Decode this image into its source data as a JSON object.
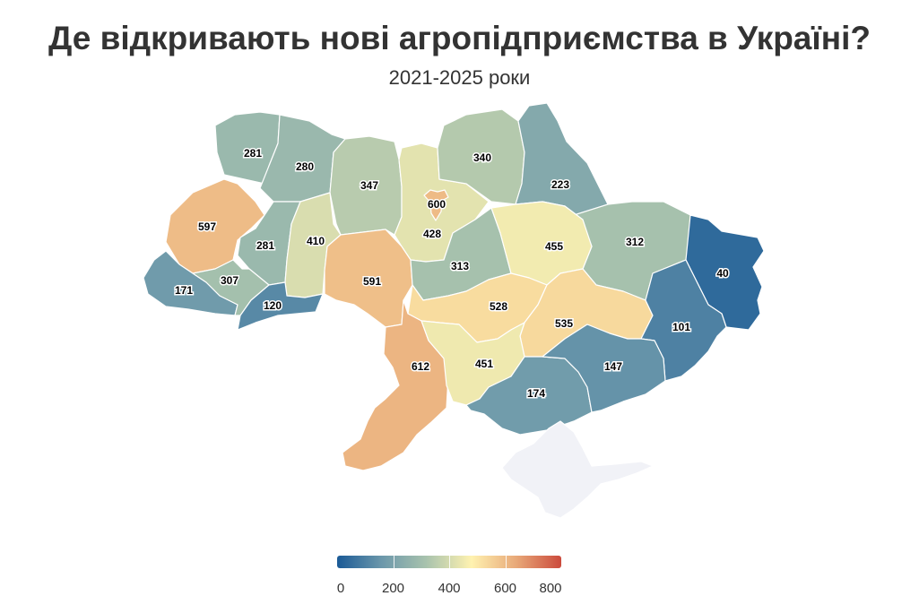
{
  "title": "Де відкривають нові агропідприємства в Україні?",
  "subtitle": "2021-2025 роки",
  "regions": [
    {
      "id": "volyn",
      "value": 281
    },
    {
      "id": "rivne",
      "value": 280
    },
    {
      "id": "zhytomyr",
      "value": 347
    },
    {
      "id": "kyiv-oblast",
      "value": 428
    },
    {
      "id": "kyiv-city",
      "value": 600
    },
    {
      "id": "chernihiv",
      "value": 340
    },
    {
      "id": "sumy",
      "value": 223
    },
    {
      "id": "kharkiv",
      "value": 312
    },
    {
      "id": "luhansk",
      "value": 40
    },
    {
      "id": "lviv",
      "value": 597
    },
    {
      "id": "ternopil",
      "value": 281
    },
    {
      "id": "khmelnytskyi",
      "value": 410
    },
    {
      "id": "vinnytsia",
      "value": 591
    },
    {
      "id": "cherkasy",
      "value": 313
    },
    {
      "id": "poltava",
      "value": 455
    },
    {
      "id": "zakarpattia",
      "value": 171
    },
    {
      "id": "ivano-frankivsk",
      "value": 307
    },
    {
      "id": "chernivtsi",
      "value": 120
    },
    {
      "id": "kirovohrad",
      "value": 528
    },
    {
      "id": "dnipropetrovsk",
      "value": 535
    },
    {
      "id": "donetsk",
      "value": 101
    },
    {
      "id": "odesa",
      "value": 612
    },
    {
      "id": "mykolaiv",
      "value": 451
    },
    {
      "id": "kherson",
      "value": 174
    },
    {
      "id": "zaporizhzhia",
      "value": 147
    },
    {
      "id": "crimea",
      "value": null
    }
  ],
  "legend": {
    "min": 0,
    "max": 800,
    "tick_labels": [
      "0",
      "200",
      "400",
      "600",
      "800"
    ],
    "colors": [
      "#1a5a96",
      "#6c98ab",
      "#a9c3ad",
      "#fff2b0",
      "#e8a878",
      "#cb4a3c"
    ],
    "no_data_color": "#f1f2f7"
  }
}
